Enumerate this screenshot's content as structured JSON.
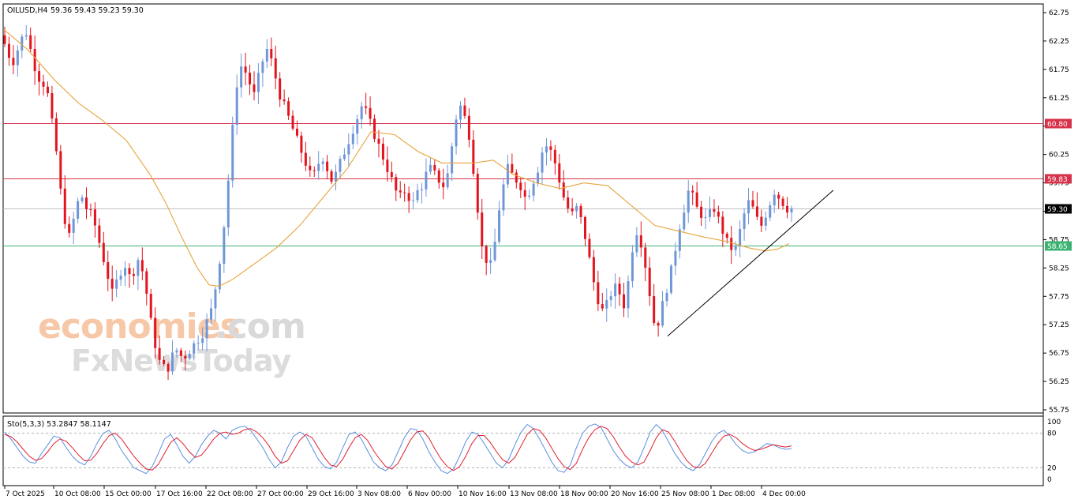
{
  "header": {
    "symbol": "OILUSD,H4",
    "ohlc": "59.36 59.43 59.23 59.30"
  },
  "watermark": {
    "line1_a": "economies",
    "line1_b": ".com",
    "line2": "FxNewsToday"
  },
  "colors": {
    "bull": "#6f97d8",
    "bear": "#e2141e",
    "ma": "#e8a33c",
    "resistance": "#d6324a",
    "support": "#3cb371",
    "price_line": "#c0c0c0",
    "trendline": "#000000",
    "stoch_main": "#5b8fe0",
    "stoch_signal": "#e02030"
  },
  "chart_data": [
    {
      "type": "candlestick",
      "title": "OILUSD,H4",
      "ylim": [
        55.65,
        62.85
      ],
      "y_ticks": [
        "62.75",
        "62.25",
        "61.75",
        "61.25",
        "60.75",
        "60.25",
        "59.75",
        "59.25",
        "58.75",
        "58.25",
        "57.75",
        "57.25",
        "56.75",
        "56.25",
        "55.75"
      ],
      "x_ticks": [
        "7 Oct 2025",
        "10 Oct 08:00",
        "15 Oct 00:00",
        "17 Oct 16:00",
        "22 Oct 08:00",
        "27 Oct 00:00",
        "29 Oct 16:00",
        "3 Nov 08:00",
        "6 Nov 00:00",
        "10 Nov 16:00",
        "13 Nov 08:00",
        "18 Nov 00:00",
        "20 Nov 16:00",
        "25 Nov 08:00",
        "1 Dec 08:00",
        "4 Dec 00:00"
      ],
      "horizontal_levels": [
        {
          "label": "60.80",
          "value": 60.8,
          "kind": "resistance"
        },
        {
          "label": "59.83",
          "value": 59.83,
          "kind": "resistance"
        },
        {
          "label": "59.30",
          "value": 59.3,
          "kind": "current"
        },
        {
          "label": "58.65",
          "value": 58.65,
          "kind": "support"
        }
      ],
      "trendline": {
        "from": [
          846,
          57.05
        ],
        "to": [
          1056,
          59.62
        ]
      },
      "close_path": [
        62.2,
        62.0,
        61.9,
        62.1,
        62.3,
        62.4,
        62.1,
        61.8,
        61.6,
        61.5,
        61.3,
        60.8,
        60.3,
        59.6,
        59.1,
        58.8,
        59.1,
        59.4,
        59.5,
        59.3,
        59.2,
        59.0,
        58.7,
        58.4,
        58.1,
        57.8,
        58.0,
        58.2,
        58.3,
        58.1,
        58.2,
        58.4,
        58.2,
        57.8,
        57.3,
        56.9,
        56.6,
        56.5,
        56.5,
        56.7,
        56.8,
        56.7,
        56.7,
        56.8,
        56.9,
        57.0,
        57.1,
        57.3,
        57.5,
        57.9,
        58.4,
        59.0,
        59.8,
        60.7,
        61.5,
        61.8,
        61.7,
        61.5,
        61.3,
        61.6,
        61.9,
        62.1,
        61.9,
        61.6,
        61.3,
        61.1,
        60.9,
        60.7,
        60.5,
        60.3,
        60.1,
        59.9,
        59.9,
        60.1,
        60.2,
        60.0,
        59.8,
        59.9,
        60.1,
        60.3,
        60.5,
        60.7,
        60.9,
        61.1,
        61.0,
        60.8,
        60.6,
        60.4,
        60.2,
        60.0,
        59.8,
        59.6,
        59.5,
        59.6,
        59.5,
        59.4,
        59.6,
        59.7,
        59.9,
        60.0,
        59.9,
        59.8,
        59.7,
        59.9,
        60.4,
        60.9,
        61.1,
        60.9,
        60.6,
        60.0,
        59.3,
        58.6,
        58.4,
        58.3,
        58.7,
        59.3,
        59.7,
        60.0,
        59.9,
        59.8,
        59.7,
        59.5,
        59.6,
        59.8,
        60.0,
        60.3,
        60.4,
        60.3,
        60.1,
        59.8,
        59.5,
        59.3,
        59.2,
        59.3,
        59.1,
        58.8,
        58.4,
        58.0,
        57.7,
        57.5,
        57.6,
        57.8,
        57.9,
        57.8,
        57.6,
        58.0,
        58.6,
        58.9,
        58.7,
        58.3,
        57.8,
        57.3,
        57.3,
        57.6,
        57.9,
        58.2,
        58.6,
        59.0,
        59.3,
        59.6,
        59.5,
        59.3,
        59.2,
        59.1,
        59.2,
        59.3,
        59.1,
        58.9,
        58.7,
        58.6,
        58.6,
        58.9,
        59.2,
        59.4,
        59.3,
        59.1,
        59.0,
        59.2,
        59.4,
        59.6,
        59.5,
        59.4,
        59.3,
        59.3
      ],
      "moving_average": [
        [
          5,
          62.45
        ],
        [
          35,
          62.1
        ],
        [
          70,
          61.55
        ],
        [
          100,
          61.15
        ],
        [
          130,
          60.85
        ],
        [
          160,
          60.5
        ],
        [
          190,
          59.9
        ],
        [
          210,
          59.4
        ],
        [
          230,
          58.8
        ],
        [
          250,
          58.25
        ],
        [
          265,
          57.95
        ],
        [
          278,
          57.93
        ],
        [
          295,
          58.05
        ],
        [
          320,
          58.3
        ],
        [
          350,
          58.6
        ],
        [
          380,
          59.0
        ],
        [
          410,
          59.5
        ],
        [
          440,
          60.0
        ],
        [
          470,
          60.65
        ],
        [
          500,
          60.6
        ],
        [
          530,
          60.3
        ],
        [
          560,
          60.1
        ],
        [
          600,
          60.1
        ],
        [
          625,
          60.15
        ],
        [
          650,
          59.9
        ],
        [
          680,
          59.75
        ],
        [
          710,
          59.65
        ],
        [
          740,
          59.75
        ],
        [
          770,
          59.7
        ],
        [
          800,
          59.35
        ],
        [
          830,
          59.0
        ],
        [
          860,
          58.9
        ],
        [
          890,
          58.8
        ],
        [
          920,
          58.72
        ],
        [
          950,
          58.6
        ],
        [
          970,
          58.55
        ],
        [
          985,
          58.58
        ],
        [
          1000,
          58.68
        ]
      ]
    },
    {
      "type": "line",
      "title": "Sto(5,3,3) 53.2847 58.1147",
      "ylim": [
        0,
        100
      ],
      "y_ticks": [
        "100",
        "80",
        "20",
        "0"
      ],
      "levels": [
        80,
        20
      ],
      "series": [
        {
          "name": "main",
          "values": [
            82,
            70,
            55,
            40,
            30,
            28,
            45,
            60,
            75,
            72,
            55,
            40,
            30,
            25,
            40,
            62,
            80,
            85,
            70,
            50,
            35,
            20,
            15,
            10,
            22,
            45,
            70,
            78,
            60,
            40,
            28,
            40,
            60,
            75,
            85,
            80,
            70,
            85,
            90,
            92,
            85,
            70,
            55,
            35,
            20,
            30,
            55,
            75,
            82,
            75,
            55,
            35,
            22,
            18,
            30,
            55,
            78,
            82,
            70,
            50,
            30,
            20,
            15,
            25,
            48,
            72,
            88,
            86,
            70,
            48,
            30,
            15,
            10,
            18,
            40,
            65,
            82,
            78,
            62,
            45,
            28,
            20,
            35,
            60,
            82,
            95,
            88,
            70,
            50,
            30,
            15,
            12,
            25,
            55,
            80,
            92,
            96,
            90,
            70,
            50,
            35,
            25,
            20,
            30,
            55,
            82,
            95,
            85,
            65,
            45,
            30,
            20,
            15,
            25,
            45,
            65,
            80,
            85,
            75,
            60,
            50,
            45,
            48,
            55,
            62,
            60,
            55,
            52,
            53
          ]
        },
        {
          "name": "signal",
          "values": [
            78,
            74,
            65,
            52,
            40,
            33,
            36,
            48,
            62,
            70,
            66,
            55,
            42,
            32,
            33,
            45,
            62,
            76,
            80,
            70,
            55,
            40,
            28,
            18,
            16,
            26,
            45,
            64,
            72,
            62,
            48,
            38,
            42,
            55,
            70,
            80,
            82,
            78,
            80,
            86,
            88,
            82,
            72,
            58,
            40,
            28,
            32,
            50,
            68,
            78,
            72,
            55,
            38,
            25,
            22,
            35,
            55,
            72,
            78,
            68,
            50,
            35,
            22,
            18,
            28,
            48,
            68,
            82,
            84,
            72,
            52,
            35,
            22,
            15,
            22,
            40,
            62,
            76,
            76,
            64,
            48,
            34,
            28,
            38,
            58,
            78,
            88,
            85,
            72,
            54,
            36,
            22,
            17,
            28,
            52,
            72,
            86,
            92,
            88,
            74,
            56,
            40,
            30,
            25,
            30,
            50,
            72,
            86,
            82,
            66,
            48,
            32,
            22,
            20,
            28,
            45,
            62,
            75,
            78,
            72,
            62,
            55,
            50,
            52,
            56,
            60,
            58,
            56,
            58
          ]
        }
      ]
    }
  ]
}
